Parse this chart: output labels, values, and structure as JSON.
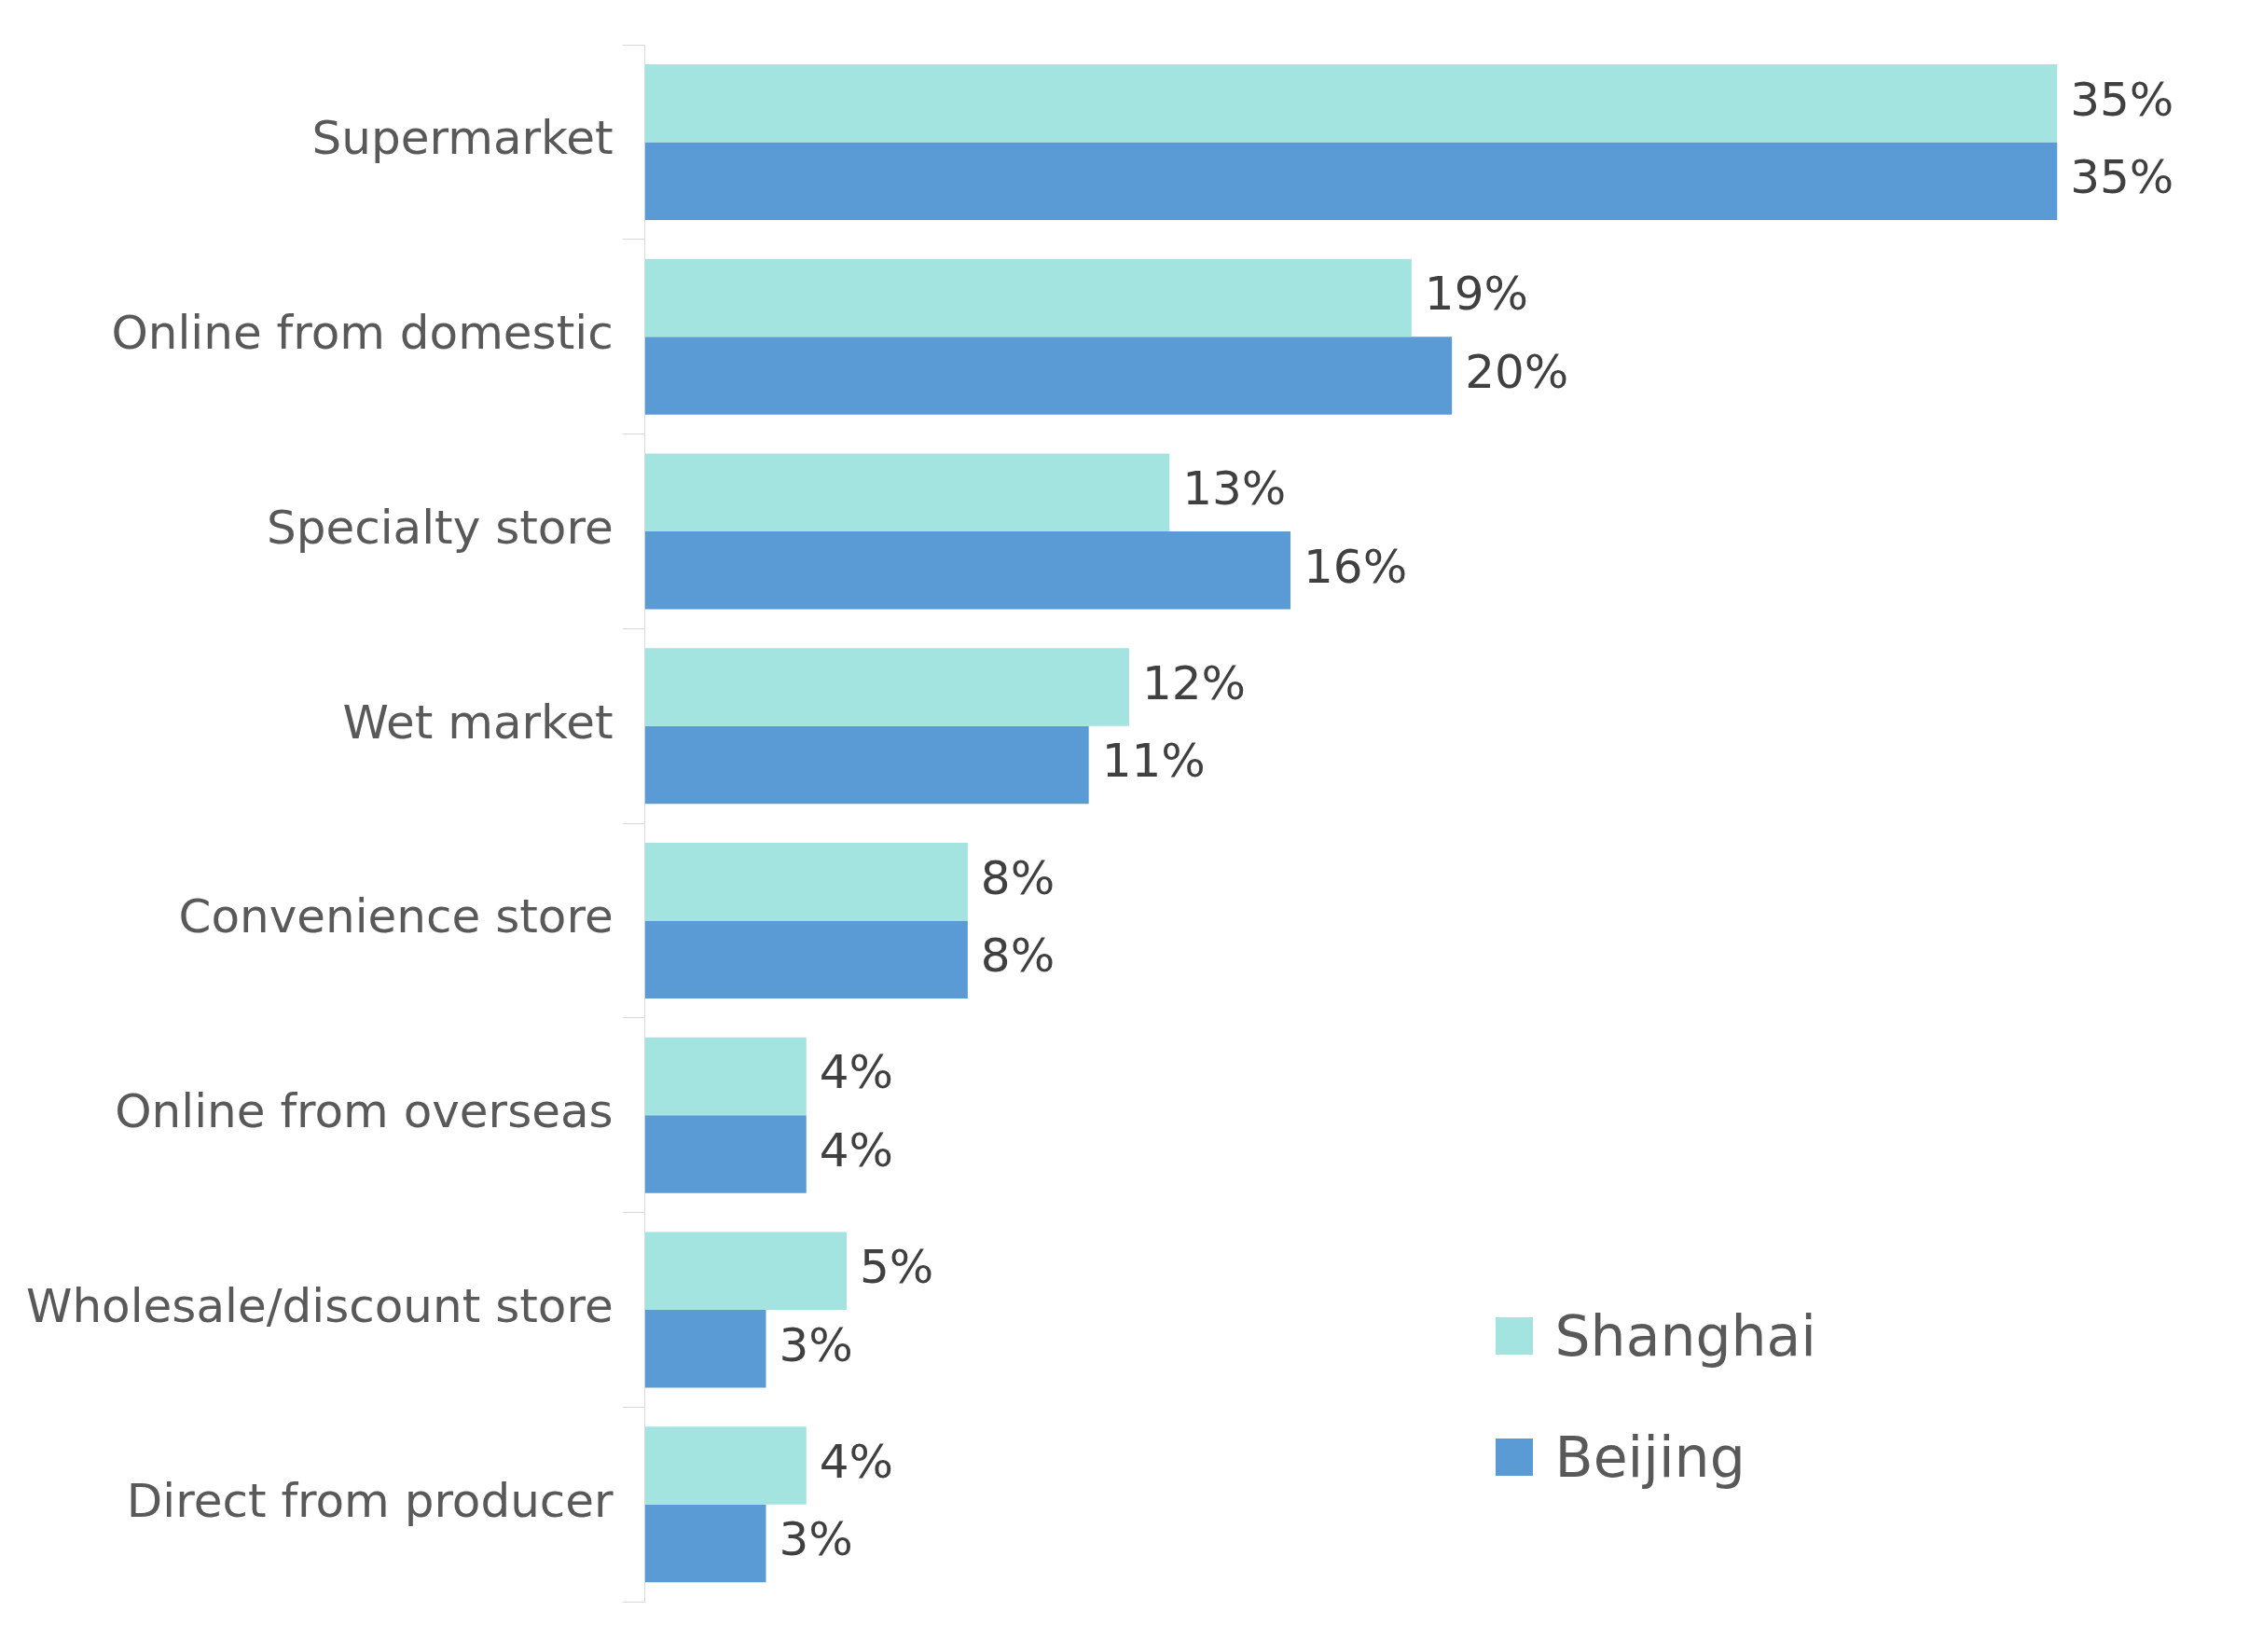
{
  "chart_data": {
    "type": "bar",
    "orientation": "horizontal",
    "categories": [
      "Supermarket",
      "Online from domestic",
      "Specialty store",
      "Wet market",
      "Convenience store",
      "Online from overseas",
      "Wholesale/discount store",
      "Direct from producer"
    ],
    "series": [
      {
        "name": "Shanghai",
        "color": "#a3e4e0",
        "values": [
          35,
          19,
          13,
          12,
          8,
          4,
          5,
          4
        ],
        "value_labels": [
          "35%",
          "19%",
          "13%",
          "12%",
          "8%",
          "4%",
          "5%",
          "4%"
        ]
      },
      {
        "name": "Beijing",
        "color": "#5b9bd5",
        "values": [
          35,
          20,
          16,
          11,
          8,
          4,
          3,
          3
        ],
        "value_labels": [
          "35%",
          "20%",
          "16%",
          "11%",
          "8%",
          "4%",
          "3%",
          "3%"
        ]
      }
    ],
    "legend": "bottom right",
    "grid": false
  }
}
